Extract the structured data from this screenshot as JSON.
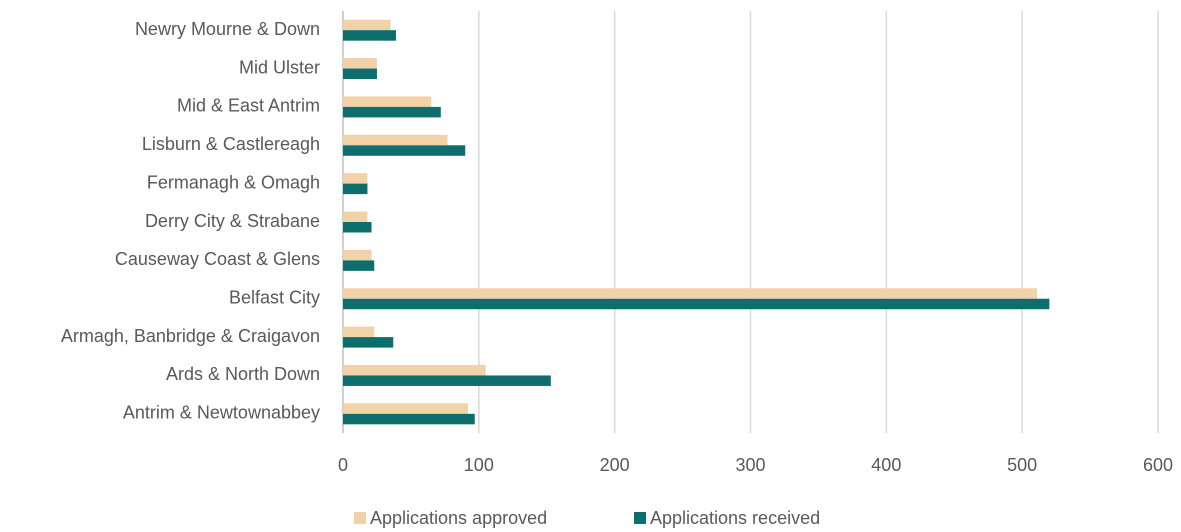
{
  "chart_data": {
    "type": "bar",
    "orientation": "horizontal",
    "categories": [
      "Newry Mourne & Down",
      "Mid Ulster",
      "Mid & East Antrim",
      "Lisburn & Castlereagh",
      "Fermanagh & Omagh",
      "Derry City & Strabane",
      "Causeway Coast & Glens",
      "Belfast City",
      "Armagh, Banbridge & Craigavon",
      "Ards & North Down",
      "Antrim & Newtownabbey"
    ],
    "series": [
      {
        "name": "Applications approved",
        "color": "#f2d3a8",
        "values": [
          35,
          25,
          65,
          77,
          18,
          18,
          21,
          511,
          23,
          105,
          92
        ]
      },
      {
        "name": "Applications received",
        "color": "#0e6e6e",
        "values": [
          39,
          25,
          72,
          90,
          18,
          21,
          23,
          520,
          37,
          153,
          97
        ]
      }
    ],
    "xlim": [
      0,
      600
    ],
    "xticks": [
      0,
      100,
      200,
      300,
      400,
      500,
      600
    ],
    "grid": true,
    "legend": "bottom"
  }
}
